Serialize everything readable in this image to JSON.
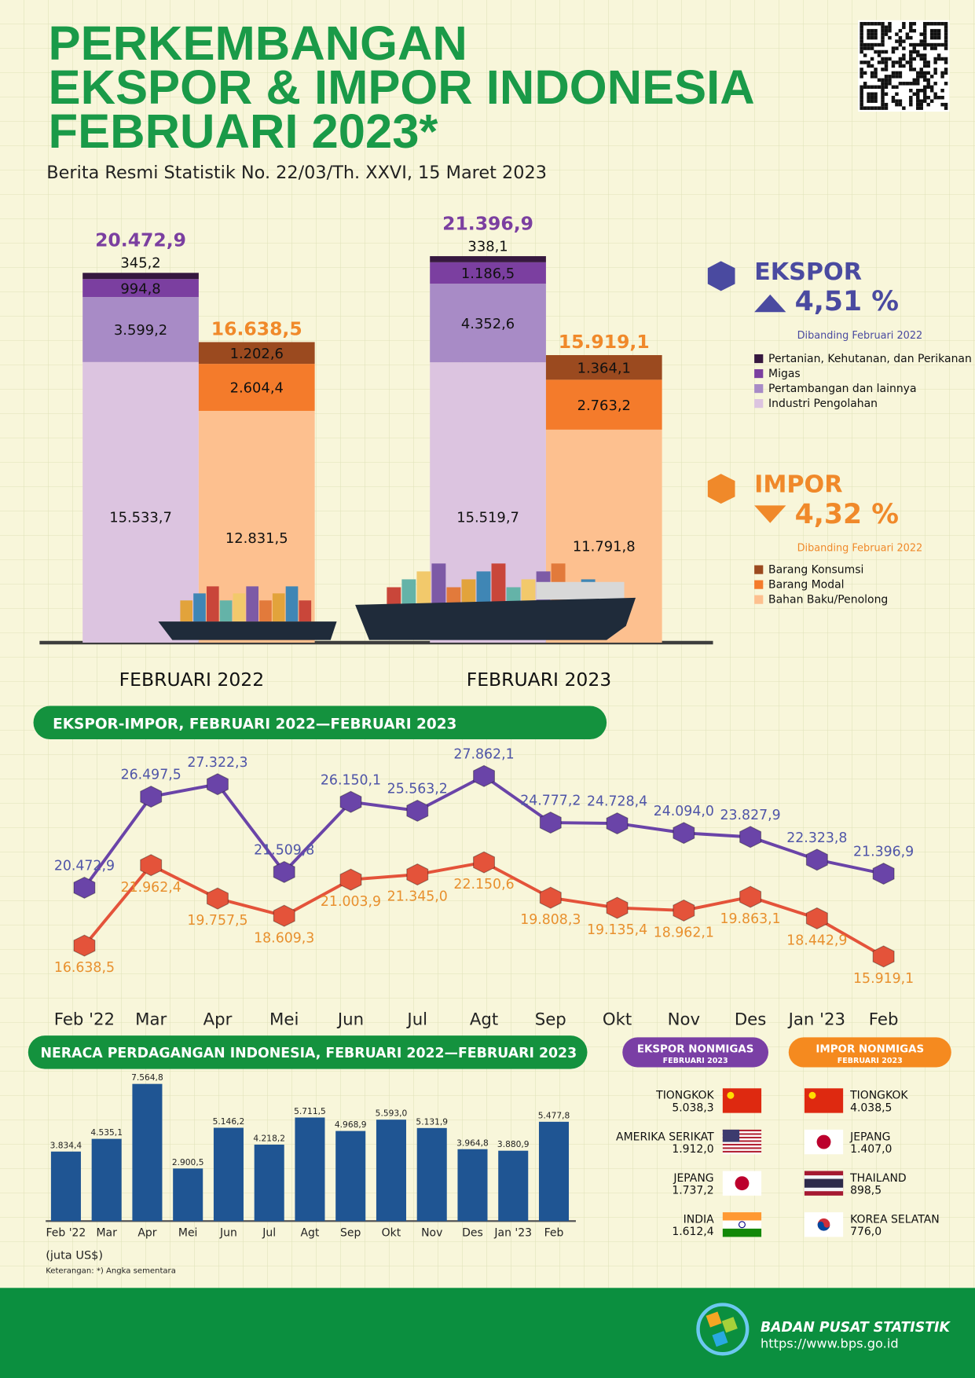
{
  "header": {
    "title": [
      "PERKEMBANGAN",
      "EKSPOR & IMPOR INDONESIA",
      "FEBRUARI 2023*"
    ],
    "subtitle": "Berita Resmi Statistik No. 22/03/Th. XXVI, 15 Maret 2023"
  },
  "summary": [
    {
      "label": "EKSPOR",
      "change": "4,51 %",
      "direction": "up",
      "note": "Dibanding Februari 2022",
      "color": "#4a4aa0"
    },
    {
      "label": "IMPOR",
      "change": "4,32 %",
      "direction": "down",
      "note": "Dibanding Februari 2022",
      "color": "#f0892a"
    }
  ],
  "chart_data": [
    {
      "type": "stacked_bar",
      "categories": [
        "FEBRUARI 2022",
        "FEBRUARI 2023"
      ],
      "ylim": [
        0,
        22000
      ],
      "stacks": [
        {
          "totals": [
            20472.9,
            21396.9
          ],
          "total_labels": [
            "20.472,9",
            "21.396,9"
          ],
          "total_color": "#7b3fa0",
          "series": [
            {
              "name": "Industri Pengolahan",
              "color": "#dcc4e0",
              "values": [
                15533.7,
                15519.7
              ],
              "value_labels": [
                "15.533,7",
                "15.519,7"
              ]
            },
            {
              "name": "Pertambangan dan lainnya",
              "color": "#a88bc6",
              "values": [
                3599.2,
                4352.6
              ],
              "value_labels": [
                "3.599,2",
                "4.352,6"
              ]
            },
            {
              "name": "Migas",
              "color": "#7b3fa0",
              "values": [
                994.8,
                1186.5
              ],
              "value_labels": [
                "994,8",
                "1.186,5"
              ]
            },
            {
              "name": "Pertanian, Kehutanan, dan Perikanan",
              "color": "#36183f",
              "values": [
                345.2,
                338.1
              ],
              "value_labels": [
                "345,2",
                "338,1"
              ]
            }
          ]
        },
        {
          "totals": [
            16638.5,
            15919.1
          ],
          "total_labels": [
            "16.638,5",
            "15.919,1"
          ],
          "total_color": "#f0892a",
          "series": [
            {
              "name": "Bahan Baku/Penolong",
              "color": "#fdc08f",
              "values": [
                12831.5,
                11791.8
              ],
              "value_labels": [
                "12.831,5",
                "11.791,8"
              ]
            },
            {
              "name": "Barang Modal",
              "color": "#f47b2b",
              "values": [
                2604.4,
                2763.2
              ],
              "value_labels": [
                "2.604,4",
                "2.763,2"
              ]
            },
            {
              "name": "Barang Konsumsi",
              "color": "#9b4a1f",
              "values": [
                1202.6,
                1364.1
              ],
              "value_labels": [
                "1.202,6",
                "1.364,1"
              ]
            }
          ]
        }
      ]
    },
    {
      "type": "line",
      "title": "EKSPOR-IMPOR, FEBRUARI 2022—FEBRUARI 2023",
      "categories": [
        "Feb '22",
        "Mar",
        "Apr",
        "Mei",
        "Jun",
        "Jul",
        "Agt",
        "Sep",
        "Okt",
        "Nov",
        "Des",
        "Jan '23",
        "Feb"
      ],
      "ylim": [
        14000,
        30000
      ],
      "series": [
        {
          "color": "#6a44a8",
          "label_color": "#4f55a8",
          "values": [
            20472.9,
            26497.5,
            27322.3,
            21509.8,
            26150.1,
            25563.2,
            27862.1,
            24777.2,
            24728.4,
            24094.0,
            23827.9,
            22323.8,
            21396.9
          ],
          "value_labels": [
            "20.472,9",
            "26.497,5",
            "27.322,3",
            "21.509,8",
            "26.150,1",
            "25.563,2",
            "27.862,1",
            "24.777,2",
            "24.728,4",
            "24.094,0",
            "23.827,9",
            "22.323,8",
            "21.396,9"
          ]
        },
        {
          "color": "#e4533a",
          "label_color": "#e8902e",
          "values": [
            16638.5,
            21962.4,
            19757.5,
            18609.3,
            21003.9,
            21345.0,
            22150.6,
            19808.3,
            19135.4,
            18962.1,
            19863.1,
            18442.9,
            15919.1
          ],
          "value_labels": [
            "16.638,5",
            "21.962,4",
            "19.757,5",
            "18.609,3",
            "21.003,9",
            "21.345,0",
            "22.150,6",
            "19.808,3",
            "19.135,4",
            "18.962,1",
            "19.863,1",
            "18.442,9",
            "15.919,1"
          ]
        }
      ]
    },
    {
      "type": "bar",
      "title": "NERACA PERDAGANGAN INDONESIA, FEBRUARI 2022—FEBRUARI 2023",
      "categories": [
        "Feb '22",
        "Mar",
        "Apr",
        "Mei",
        "Jun",
        "Jul",
        "Agt",
        "Sep",
        "Okt",
        "Nov",
        "Des",
        "Jan '23",
        "Feb"
      ],
      "values": [
        3834.4,
        4535.1,
        7564.8,
        2900.5,
        5146.2,
        4218.2,
        5711.5,
        4968.9,
        5593.0,
        5131.9,
        3964.8,
        3880.9,
        5477.8
      ],
      "value_labels": [
        "3.834,4",
        "4.535,1",
        "7.564,8",
        "2.900,5",
        "5.146,2",
        "4.218,2",
        "5.711,5",
        "4.968,9",
        "5.593,0",
        "5.131,9",
        "3.964,8",
        "3.880,9",
        "5.477,8"
      ],
      "color": "#1f5593",
      "ylim": [
        0,
        8000
      ],
      "unit": "(juta US$)",
      "note": "Keterangan: *) Angka sementara"
    }
  ],
  "partners": [
    {
      "title": "EKSPOR NONMIGAS",
      "subtitle": "FEBRUARI 2023",
      "color": "#7a3fa5",
      "rows": [
        {
          "country": "TIONGKOK",
          "value": "5.038,3"
        },
        {
          "country": "AMERIKA SERIKAT",
          "value": "1.912,0"
        },
        {
          "country": "JEPANG",
          "value": "1.737,2"
        },
        {
          "country": "INDIA",
          "value": "1.612,4"
        }
      ]
    },
    {
      "title": "IMPOR NONMIGAS",
      "subtitle": "FEBRUARI 2023",
      "color": "#f58a1f",
      "rows": [
        {
          "country": "TIONGKOK",
          "value": "4.038,5"
        },
        {
          "country": "JEPANG",
          "value": "1.407,0"
        },
        {
          "country": "THAILAND",
          "value": "898,5"
        },
        {
          "country": "KOREA SELATAN",
          "value": "776,0"
        }
      ]
    }
  ],
  "footer": {
    "org": "BADAN PUSAT STATISTIK",
    "url": "https://www.bps.go.id"
  }
}
